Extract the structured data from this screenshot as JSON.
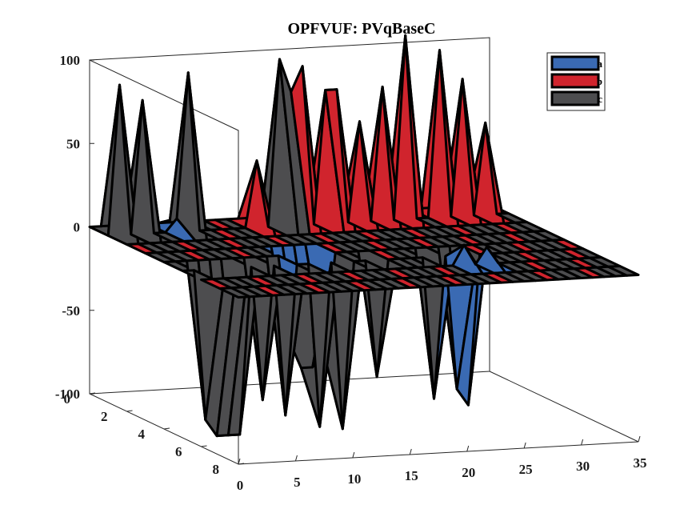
{
  "chart_data": {
    "type": "surface3d",
    "title": "OPFVUF: PVqBaseC",
    "xlabel": "",
    "ylabel": "",
    "zlabel": "",
    "xlim": [
      0,
      35
    ],
    "ylim": [
      0,
      8
    ],
    "zlim": [
      -100,
      100
    ],
    "x_ticks": [
      "0",
      "5",
      "10",
      "15",
      "20",
      "25",
      "30",
      "35"
    ],
    "y_ticks": [
      "0",
      "2",
      "4",
      "6",
      "8"
    ],
    "z_ticks": [
      "100",
      "50",
      "0",
      "-50",
      "-100"
    ],
    "legend_position": "top-right",
    "series": [
      {
        "name": "a",
        "color": "#3a6ab3",
        "points": [
          {
            "x": 6,
            "y": 1,
            "z": 8
          },
          {
            "x": 12,
            "y": 4,
            "z": -68
          },
          {
            "x": 13,
            "y": 4,
            "z": -68
          },
          {
            "x": 14,
            "y": 4,
            "z": -60
          },
          {
            "x": 11,
            "y": 4,
            "z": -52
          },
          {
            "x": 23,
            "y": 6,
            "z": 12
          },
          {
            "x": 25,
            "y": 6,
            "z": 10
          }
        ]
      },
      {
        "name": "b",
        "color": "#d0242d",
        "points": [
          {
            "x": 13,
            "y": 1,
            "z": 40
          },
          {
            "x": 15,
            "y": 1,
            "z": 90
          },
          {
            "x": 17,
            "y": 1,
            "z": 95
          },
          {
            "x": 19,
            "y": 1,
            "z": 80
          },
          {
            "x": 20,
            "y": 1,
            "z": 80
          },
          {
            "x": 22,
            "y": 1,
            "z": 60
          },
          {
            "x": 24,
            "y": 1,
            "z": 80
          },
          {
            "x": 26,
            "y": 1,
            "z": 110
          },
          {
            "x": 29,
            "y": 1,
            "z": 100
          },
          {
            "x": 31,
            "y": 1,
            "z": 82
          },
          {
            "x": 33,
            "y": 1,
            "z": 55
          }
        ]
      },
      {
        "name": "c",
        "color": "#4d4d4f",
        "points": [
          {
            "x": 1,
            "y": 1,
            "z": 90
          },
          {
            "x": 3,
            "y": 1,
            "z": 80
          },
          {
            "x": 7,
            "y": 1,
            "z": 95
          },
          {
            "x": 15,
            "y": 1,
            "z": 100
          },
          {
            "x": 16,
            "y": 1,
            "z": 80
          },
          {
            "x": 2,
            "y": 5,
            "z": -90
          },
          {
            "x": 3,
            "y": 5,
            "z": -100
          },
          {
            "x": 4,
            "y": 5,
            "z": -100
          },
          {
            "x": 5,
            "y": 5,
            "z": -100
          },
          {
            "x": 7,
            "y": 5,
            "z": -80
          },
          {
            "x": 9,
            "y": 5,
            "z": -90
          },
          {
            "x": 12,
            "y": 5,
            "z": -98
          },
          {
            "x": 14,
            "y": 5,
            "z": -100
          },
          {
            "x": 17,
            "y": 5,
            "z": -70
          },
          {
            "x": 22,
            "y": 5,
            "z": -85
          },
          {
            "x": 24,
            "y": 5,
            "z": -80
          },
          {
            "x": 25,
            "y": 5,
            "z": -90
          }
        ]
      }
    ]
  }
}
